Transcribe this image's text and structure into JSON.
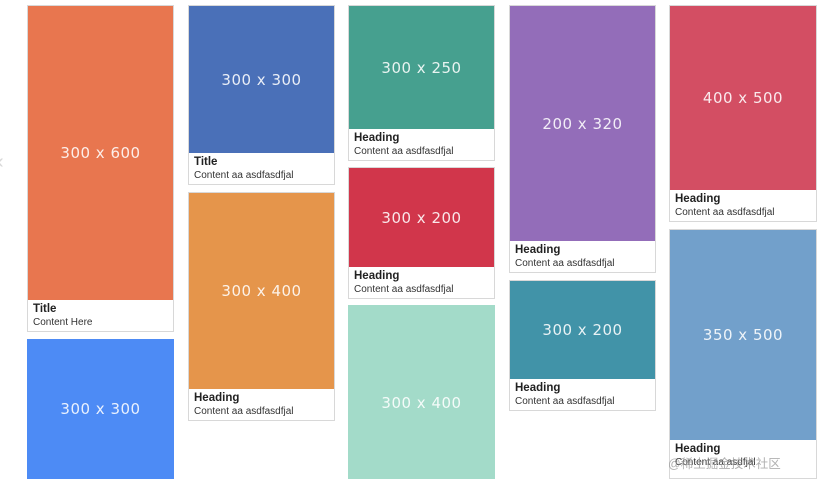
{
  "cards": [
    {
      "placeholder": "300 x 600",
      "color": "#e8764f",
      "title": "Title",
      "content": "Content Here"
    },
    {
      "placeholder": "300 x 300",
      "color": "#4d8bf5",
      "title": null,
      "content": null
    },
    {
      "placeholder": "300 x 300",
      "color": "#4a70b8",
      "title": "Title",
      "content": "Content aa asdfasdfjal"
    },
    {
      "placeholder": "300 x 400",
      "color": "#e5954b",
      "title": "Heading",
      "content": "Content aa asdfasdfjal"
    },
    {
      "placeholder": "300 x 250",
      "color": "#46a08f",
      "title": "Heading",
      "content": "Content aa asdfasdfjal"
    },
    {
      "placeholder": "300 x 200",
      "color": "#d1364b",
      "title": "Heading",
      "content": "Content aa asdfasdfjal"
    },
    {
      "placeholder": "300 x 400",
      "color": "#a3dbc9",
      "title": null,
      "content": null
    },
    {
      "placeholder": "200 x 320",
      "color": "#936db9",
      "title": "Heading",
      "content": "Content aa asdfasdfjal"
    },
    {
      "placeholder": "300 x 200",
      "color": "#4193a8",
      "title": "Heading",
      "content": "Content aa asdfasdfjal"
    },
    {
      "placeholder": "400 x 500",
      "color": "#d34e63",
      "title": "Heading",
      "content": "Content aa asdfasdfjal"
    },
    {
      "placeholder": "350 x 500",
      "color": "#72a0cb",
      "title": "Heading",
      "content": "Content aa asdfjal"
    }
  ],
  "watermark": "@稀土掘金技术社区"
}
